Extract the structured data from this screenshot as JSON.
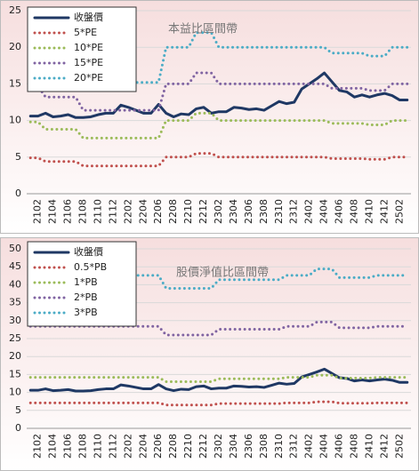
{
  "chart_data": [
    {
      "type": "line",
      "title": "本益比區間帶",
      "legend": "upper left",
      "grid": true,
      "categories": [
        null,
        "2102",
        null,
        "2104",
        null,
        "2106",
        null,
        "2108",
        null,
        "2110",
        null,
        "2112",
        null,
        "2202",
        null,
        "2204",
        null,
        "2206",
        null,
        "2208",
        null,
        "2210",
        null,
        "2212",
        null,
        "2302",
        null,
        "2304",
        null,
        "2306",
        null,
        "2308",
        null,
        "2310",
        null,
        "2312",
        null,
        "2402",
        null,
        "2404",
        null,
        "2406",
        null,
        "2408",
        null,
        "2410",
        null,
        "2412",
        null,
        "2502",
        null
      ],
      "ylim": [
        0,
        25
      ],
      "yticks": [
        0,
        5,
        10,
        15,
        20,
        25
      ],
      "series": [
        {
          "name": "收盤價",
          "color": "#1f3864",
          "style": "solid",
          "values": [
            10.6,
            10.6,
            11.0,
            10.5,
            10.6,
            10.8,
            10.4,
            10.4,
            10.5,
            10.8,
            11.0,
            11.0,
            12.1,
            11.8,
            11.4,
            11.0,
            11.0,
            12.2,
            11.0,
            10.5,
            10.9,
            10.8,
            11.6,
            11.8,
            11.0,
            11.2,
            11.2,
            11.8,
            11.7,
            11.5,
            11.6,
            11.4,
            12.0,
            12.6,
            12.3,
            12.5,
            14.3,
            15.0,
            15.7,
            16.5,
            15.3,
            14.1,
            13.9,
            13.2,
            13.5,
            13.2,
            13.5,
            13.7,
            13.4,
            12.8,
            12.8
          ]
        },
        {
          "name": "5*PE",
          "color": "#c0504d",
          "style": "dotted",
          "values": [
            4.9,
            4.9,
            4.4,
            4.4,
            4.4,
            4.4,
            4.4,
            3.8,
            3.8,
            3.8,
            3.8,
            3.8,
            3.8,
            3.8,
            3.8,
            3.8,
            3.8,
            3.8,
            5,
            5,
            5,
            5,
            5.5,
            5.5,
            5.5,
            5,
            5,
            5,
            5,
            5,
            5,
            5,
            5,
            5,
            5,
            5,
            5,
            5,
            5,
            5,
            4.8,
            4.8,
            4.8,
            4.8,
            4.8,
            4.7,
            4.7,
            4.7,
            5,
            5,
            5
          ]
        },
        {
          "name": "10*PE",
          "color": "#9bbb59",
          "style": "dotted",
          "values": [
            9.8,
            9.8,
            8.8,
            8.8,
            8.8,
            8.8,
            8.8,
            7.6,
            7.6,
            7.6,
            7.6,
            7.6,
            7.6,
            7.6,
            7.6,
            7.6,
            7.6,
            7.6,
            10,
            10,
            10,
            10,
            11,
            11,
            11,
            10,
            10,
            10,
            10,
            10,
            10,
            10,
            10,
            10,
            10,
            10,
            10,
            10,
            10,
            10,
            9.6,
            9.6,
            9.6,
            9.6,
            9.6,
            9.4,
            9.4,
            9.4,
            10,
            10,
            10
          ]
        },
        {
          "name": "15*PE",
          "color": "#8064a2",
          "style": "dotted",
          "values": [
            14.7,
            14.7,
            13.2,
            13.2,
            13.2,
            13.2,
            13.2,
            11.4,
            11.4,
            11.4,
            11.4,
            11.4,
            11.4,
            11.4,
            11.4,
            11.4,
            11.4,
            11.4,
            15,
            15,
            15,
            15,
            16.5,
            16.5,
            16.5,
            15,
            15,
            15,
            15,
            15,
            15,
            15,
            15,
            15,
            15,
            15,
            15,
            15,
            15,
            15,
            14.4,
            14.4,
            14.4,
            14.4,
            14.4,
            14.1,
            14.1,
            14.1,
            15,
            15,
            15
          ]
        },
        {
          "name": "20*PE",
          "color": "#4bacc6",
          "style": "dotted",
          "values": [
            19.6,
            19.6,
            17.6,
            17.6,
            17.6,
            17.6,
            17.6,
            15.2,
            15.2,
            15.2,
            15.2,
            15.2,
            15.2,
            15.2,
            15.2,
            15.2,
            15.2,
            15.2,
            20,
            20,
            20,
            20,
            22,
            22,
            22,
            20,
            20,
            20,
            20,
            20,
            20,
            20,
            20,
            20,
            20,
            20,
            20,
            20,
            20,
            20,
            19.2,
            19.2,
            19.2,
            19.2,
            19.2,
            18.8,
            18.8,
            18.8,
            20,
            20,
            20
          ]
        }
      ]
    },
    {
      "type": "line",
      "title": "股價淨值比區間帶",
      "legend": "upper left",
      "grid": true,
      "categories": [
        null,
        "2102",
        null,
        "2104",
        null,
        "2106",
        null,
        "2108",
        null,
        "2110",
        null,
        "2112",
        null,
        "2202",
        null,
        "2204",
        null,
        "2206",
        null,
        "2208",
        null,
        "2210",
        null,
        "2212",
        null,
        "2302",
        null,
        "2304",
        null,
        "2306",
        null,
        "2308",
        null,
        "2310",
        null,
        "2312",
        null,
        "2402",
        null,
        "2404",
        null,
        "2406",
        null,
        "2408",
        null,
        "2410",
        null,
        "2412",
        null,
        "2502",
        null
      ],
      "ylim": [
        0,
        50
      ],
      "yticks": [
        0,
        5,
        10,
        15,
        20,
        25,
        30,
        35,
        40,
        45,
        50
      ],
      "series": [
        {
          "name": "收盤價",
          "color": "#1f3864",
          "style": "solid",
          "values": [
            10.6,
            10.6,
            11.0,
            10.5,
            10.6,
            10.8,
            10.4,
            10.4,
            10.5,
            10.8,
            11.0,
            11.0,
            12.1,
            11.8,
            11.4,
            11.0,
            11.0,
            12.2,
            11.0,
            10.5,
            10.9,
            10.8,
            11.6,
            11.8,
            11.0,
            11.2,
            11.2,
            11.8,
            11.7,
            11.5,
            11.6,
            11.4,
            12.0,
            12.6,
            12.3,
            12.5,
            14.3,
            15.0,
            15.7,
            16.5,
            15.3,
            14.1,
            13.9,
            13.2,
            13.5,
            13.2,
            13.5,
            13.7,
            13.4,
            12.8,
            12.8
          ]
        },
        {
          "name": "0.5*PB",
          "color": "#c0504d",
          "style": "dotted",
          "values": [
            7.1,
            7.1,
            7.1,
            7.1,
            7.1,
            7.1,
            7.1,
            7.1,
            7.1,
            7.1,
            7.1,
            7.1,
            7.1,
            7.1,
            7.1,
            7.1,
            7.1,
            7.1,
            6.5,
            6.5,
            6.5,
            6.5,
            6.5,
            6.5,
            6.5,
            6.9,
            6.9,
            6.9,
            6.9,
            6.9,
            6.9,
            6.9,
            6.9,
            6.9,
            7.1,
            7.1,
            7.1,
            7.1,
            7.4,
            7.4,
            7.4,
            7.0,
            7.0,
            7.0,
            7.0,
            7.0,
            7.1,
            7.1,
            7.1,
            7.1,
            7.1
          ]
        },
        {
          "name": "1*PB",
          "color": "#9bbb59",
          "style": "dotted",
          "values": [
            14.2,
            14.2,
            14.2,
            14.2,
            14.2,
            14.2,
            14.2,
            14.2,
            14.2,
            14.2,
            14.2,
            14.2,
            14.2,
            14.2,
            14.2,
            14.2,
            14.2,
            14.2,
            13,
            13,
            13,
            13,
            13,
            13,
            13,
            13.8,
            13.8,
            13.8,
            13.8,
            13.8,
            13.8,
            13.8,
            13.8,
            13.8,
            14.2,
            14.2,
            14.2,
            14.2,
            14.8,
            14.8,
            14.8,
            14,
            14,
            14,
            14,
            14,
            14.2,
            14.2,
            14.2,
            14.2,
            14.2
          ]
        },
        {
          "name": "2*PB",
          "color": "#8064a2",
          "style": "dotted",
          "values": [
            28.4,
            28.4,
            28.4,
            28.4,
            28.4,
            28.4,
            28.4,
            28.4,
            28.4,
            28.4,
            28.4,
            28.4,
            28.4,
            28.4,
            28.4,
            28.4,
            28.4,
            28.4,
            26,
            26,
            26,
            26,
            26,
            26,
            26,
            27.6,
            27.6,
            27.6,
            27.6,
            27.6,
            27.6,
            27.6,
            27.6,
            27.6,
            28.4,
            28.4,
            28.4,
            28.4,
            29.6,
            29.6,
            29.6,
            28,
            28,
            28,
            28,
            28,
            28.4,
            28.4,
            28.4,
            28.4,
            28.4
          ]
        },
        {
          "name": "3*PB",
          "color": "#4bacc6",
          "style": "dotted",
          "values": [
            42.6,
            42.6,
            42.6,
            42.6,
            42.6,
            42.6,
            42.6,
            42.6,
            42.6,
            42.6,
            42.6,
            42.6,
            42.6,
            42.6,
            42.6,
            42.6,
            42.6,
            42.6,
            39,
            39,
            39,
            39,
            39,
            39,
            39,
            41.4,
            41.4,
            41.4,
            41.4,
            41.4,
            41.4,
            41.4,
            41.4,
            41.4,
            42.6,
            42.6,
            42.6,
            42.6,
            44.4,
            44.4,
            44.4,
            42,
            42,
            42,
            42,
            42,
            42.6,
            42.6,
            42.6,
            42.6,
            42.6
          ]
        }
      ]
    }
  ]
}
